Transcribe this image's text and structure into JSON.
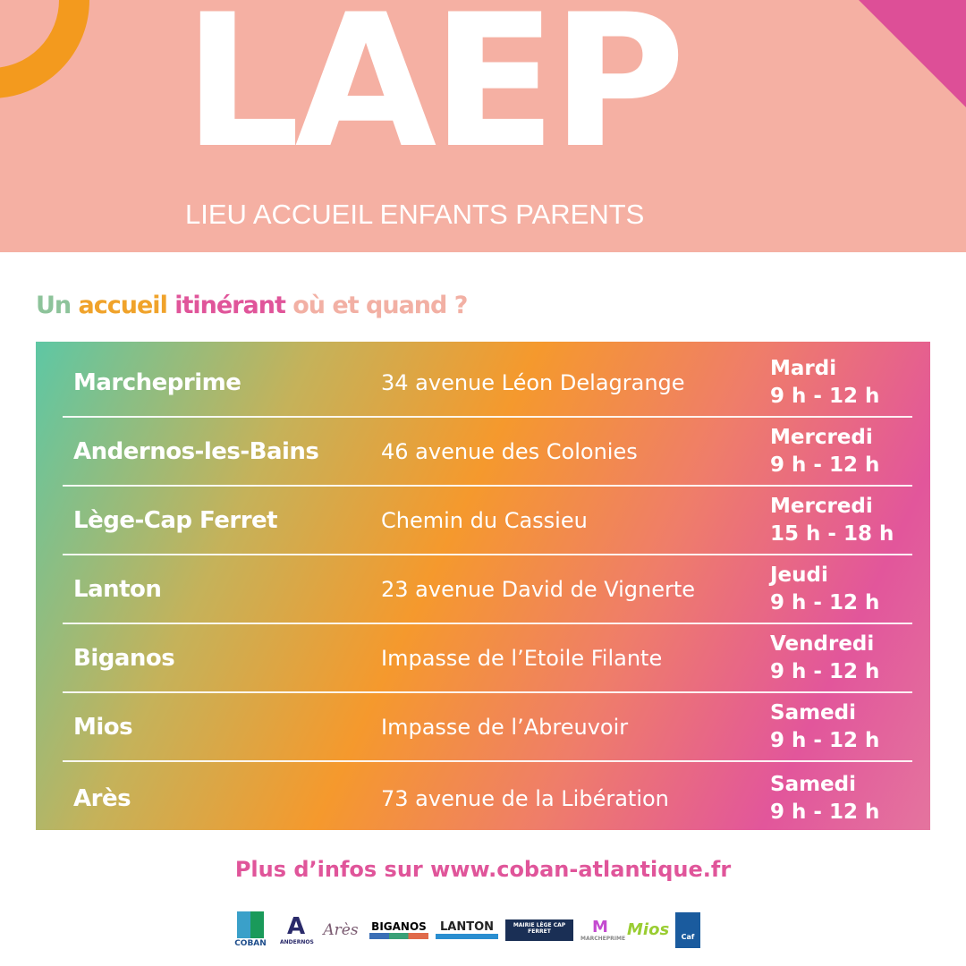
{
  "hero": {
    "logo": "LAEP",
    "subtitle": "LIEU ACCUEIL ENFANTS PARENTS"
  },
  "heading": [
    "Un ",
    "accueil ",
    "itinérant ",
    "où et quand ?"
  ],
  "rows": [
    {
      "city": "Marcheprime",
      "address": "34 avenue Léon Delagrange",
      "day": "Mardi",
      "hours": "9 h - 12 h"
    },
    {
      "city": "Andernos-les-Bains",
      "address": "46 avenue des Colonies",
      "day": "Mercredi",
      "hours": "9 h - 12 h"
    },
    {
      "city": "Lège-Cap Ferret",
      "address": "Chemin du Cassieu",
      "day": "Mercredi",
      "hours": "15 h - 18 h"
    },
    {
      "city": "Lanton",
      "address": "23 avenue David de Vignerte",
      "day": "Jeudi",
      "hours": "9 h - 12 h"
    },
    {
      "city": "Biganos",
      "address": "Impasse de l’Etoile Filante",
      "day": "Vendredi",
      "hours": "9 h - 12 h"
    },
    {
      "city": "Mios",
      "address": "Impasse de l’Abreuvoir",
      "day": "Samedi",
      "hours": "9 h - 12 h"
    },
    {
      "city": "Arès",
      "address": "73 avenue de la Libération",
      "day": "Samedi",
      "hours": "9 h - 12 h"
    }
  ],
  "more_info": "Plus d’infos sur www.coban-atlantique.fr",
  "partners": [
    "COBAN",
    "ANDERNOS",
    "Arès",
    "BIGANOS",
    "LANTON",
    "MAIRIE LÈGE CAP FERRET",
    "MARCHEPRIME",
    "Mios",
    "Caf"
  ]
}
